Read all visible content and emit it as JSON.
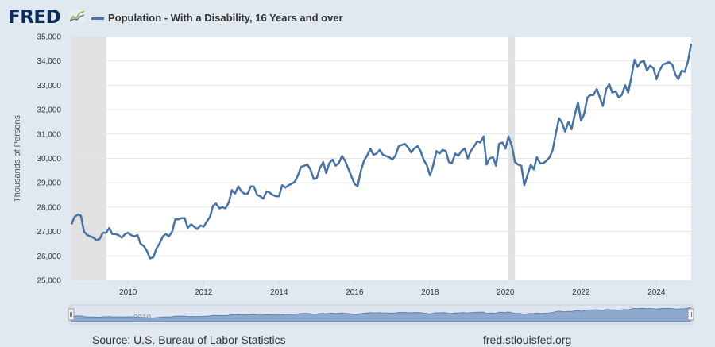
{
  "header": {
    "logo": "FRED",
    "series_title": "Population - With a Disability, 16 Years and over"
  },
  "footer": {
    "source": "Source: U.S. Bureau of Labor Statistics",
    "url": "fred.stlouisfed.org"
  },
  "colors": {
    "series": "#4572a7",
    "recession": "#e1e1e1",
    "background": "#e1e9f0"
  },
  "chart_data": {
    "type": "line",
    "title": "Population - With a Disability, 16 Years and over",
    "ylabel": "Thousands of Persons",
    "xlabel": "",
    "ylim": [
      25000,
      35000
    ],
    "xlim": [
      2008.5,
      2024.92
    ],
    "yticks": [
      25000,
      26000,
      27000,
      28000,
      29000,
      30000,
      31000,
      32000,
      33000,
      34000,
      35000
    ],
    "ytick_labels": [
      "25,000",
      "26,000",
      "27,000",
      "28,000",
      "29,000",
      "30,000",
      "31,000",
      "32,000",
      "33,000",
      "34,000",
      "35,000"
    ],
    "xticks": [
      2010,
      2012,
      2014,
      2016,
      2018,
      2020,
      2022,
      2024
    ],
    "xtick_labels": [
      "2010",
      "2012",
      "2014",
      "2016",
      "2018",
      "2020",
      "2022",
      "2024"
    ],
    "navigator_label": "2010",
    "recessions": [
      [
        2008.5,
        2009.42
      ],
      [
        2020.08,
        2020.25
      ]
    ],
    "series": [
      {
        "name": "Population - With a Disability, 16 Years and over",
        "x": [
          2008.5,
          2008.58,
          2008.67,
          2008.75,
          2008.83,
          2008.92,
          2009.0,
          2009.08,
          2009.17,
          2009.25,
          2009.33,
          2009.42,
          2009.5,
          2009.58,
          2009.67,
          2009.75,
          2009.83,
          2009.92,
          2010.0,
          2010.08,
          2010.17,
          2010.25,
          2010.33,
          2010.42,
          2010.5,
          2010.58,
          2010.67,
          2010.75,
          2010.83,
          2010.92,
          2011.0,
          2011.08,
          2011.17,
          2011.25,
          2011.33,
          2011.42,
          2011.5,
          2011.58,
          2011.67,
          2011.75,
          2011.83,
          2011.92,
          2012.0,
          2012.08,
          2012.17,
          2012.25,
          2012.33,
          2012.42,
          2012.5,
          2012.58,
          2012.67,
          2012.75,
          2012.83,
          2012.92,
          2013.0,
          2013.08,
          2013.17,
          2013.25,
          2013.33,
          2013.42,
          2013.5,
          2013.58,
          2013.67,
          2013.75,
          2013.83,
          2013.92,
          2014.0,
          2014.08,
          2014.17,
          2014.25,
          2014.33,
          2014.42,
          2014.5,
          2014.58,
          2014.67,
          2014.75,
          2014.83,
          2014.92,
          2015.0,
          2015.08,
          2015.17,
          2015.25,
          2015.33,
          2015.42,
          2015.5,
          2015.58,
          2015.67,
          2015.75,
          2015.83,
          2015.92,
          2016.0,
          2016.08,
          2016.17,
          2016.25,
          2016.33,
          2016.42,
          2016.5,
          2016.58,
          2016.67,
          2016.75,
          2016.83,
          2016.92,
          2017.0,
          2017.08,
          2017.17,
          2017.25,
          2017.33,
          2017.42,
          2017.5,
          2017.58,
          2017.67,
          2017.75,
          2017.83,
          2017.92,
          2018.0,
          2018.08,
          2018.17,
          2018.25,
          2018.33,
          2018.42,
          2018.5,
          2018.58,
          2018.67,
          2018.75,
          2018.83,
          2018.92,
          2019.0,
          2019.08,
          2019.17,
          2019.25,
          2019.33,
          2019.42,
          2019.5,
          2019.58,
          2019.67,
          2019.75,
          2019.83,
          2019.92,
          2020.0,
          2020.08,
          2020.17,
          2020.25,
          2020.33,
          2020.42,
          2020.5,
          2020.58,
          2020.67,
          2020.75,
          2020.83,
          2020.92,
          2021.0,
          2021.08,
          2021.17,
          2021.25,
          2021.33,
          2021.42,
          2021.5,
          2021.58,
          2021.67,
          2021.75,
          2021.83,
          2021.92,
          2022.0,
          2022.08,
          2022.17,
          2022.25,
          2022.33,
          2022.42,
          2022.5,
          2022.58,
          2022.67,
          2022.75,
          2022.83,
          2022.92,
          2023.0,
          2023.08,
          2023.17,
          2023.25,
          2023.33,
          2023.42,
          2023.5,
          2023.58,
          2023.67,
          2023.75,
          2023.83,
          2023.92,
          2024.0,
          2024.08,
          2024.17,
          2024.25,
          2024.33,
          2024.42,
          2024.5,
          2024.58,
          2024.67,
          2024.75,
          2024.83,
          2024.92
        ],
        "values": [
          27300,
          27600,
          27700,
          27650,
          27000,
          26850,
          26800,
          26750,
          26650,
          26700,
          26950,
          26950,
          27150,
          26900,
          26900,
          26850,
          26750,
          26900,
          26950,
          26850,
          26800,
          26850,
          26500,
          26400,
          26200,
          25900,
          25950,
          26300,
          26500,
          26800,
          26900,
          26800,
          27000,
          27500,
          27500,
          27550,
          27550,
          27150,
          27300,
          27200,
          27100,
          27250,
          27200,
          27400,
          27600,
          28050,
          28150,
          27950,
          28000,
          27950,
          28200,
          28700,
          28550,
          28850,
          28650,
          28550,
          28550,
          28850,
          28850,
          28500,
          28450,
          28350,
          28650,
          28600,
          28500,
          28450,
          28450,
          28900,
          28800,
          28900,
          28950,
          29050,
          29300,
          29650,
          29700,
          29750,
          29550,
          29150,
          29200,
          29600,
          29850,
          29400,
          29800,
          29950,
          29700,
          29800,
          30100,
          29900,
          29600,
          29250,
          28950,
          28850,
          29500,
          29900,
          30100,
          30400,
          30150,
          30200,
          30350,
          30150,
          30100,
          30050,
          29950,
          30100,
          30500,
          30550,
          30600,
          30450,
          30250,
          30400,
          30500,
          30300,
          29950,
          29700,
          29300,
          29700,
          30300,
          30200,
          30350,
          30300,
          29850,
          29800,
          30200,
          30100,
          30300,
          30400,
          30000,
          30300,
          30500,
          30700,
          30650,
          30900,
          29750,
          30000,
          30050,
          29700,
          30600,
          30650,
          30400,
          30900,
          30500,
          29850,
          29750,
          29700,
          28900,
          29300,
          29750,
          29550,
          30050,
          29800,
          29800,
          29900,
          30050,
          30350,
          31000,
          31650,
          31450,
          31100,
          31500,
          31200,
          31750,
          32300,
          31550,
          31800,
          32500,
          32600,
          32600,
          32850,
          32500,
          32150,
          32850,
          33050,
          32700,
          32750,
          32500,
          32600,
          33000,
          32700,
          33300,
          34050,
          33750,
          33950,
          34000,
          33600,
          33800,
          33700,
          33250,
          33600,
          33850,
          33900,
          33950,
          33850,
          33450,
          33250,
          33600,
          33550,
          33950,
          34700
        ]
      }
    ]
  }
}
